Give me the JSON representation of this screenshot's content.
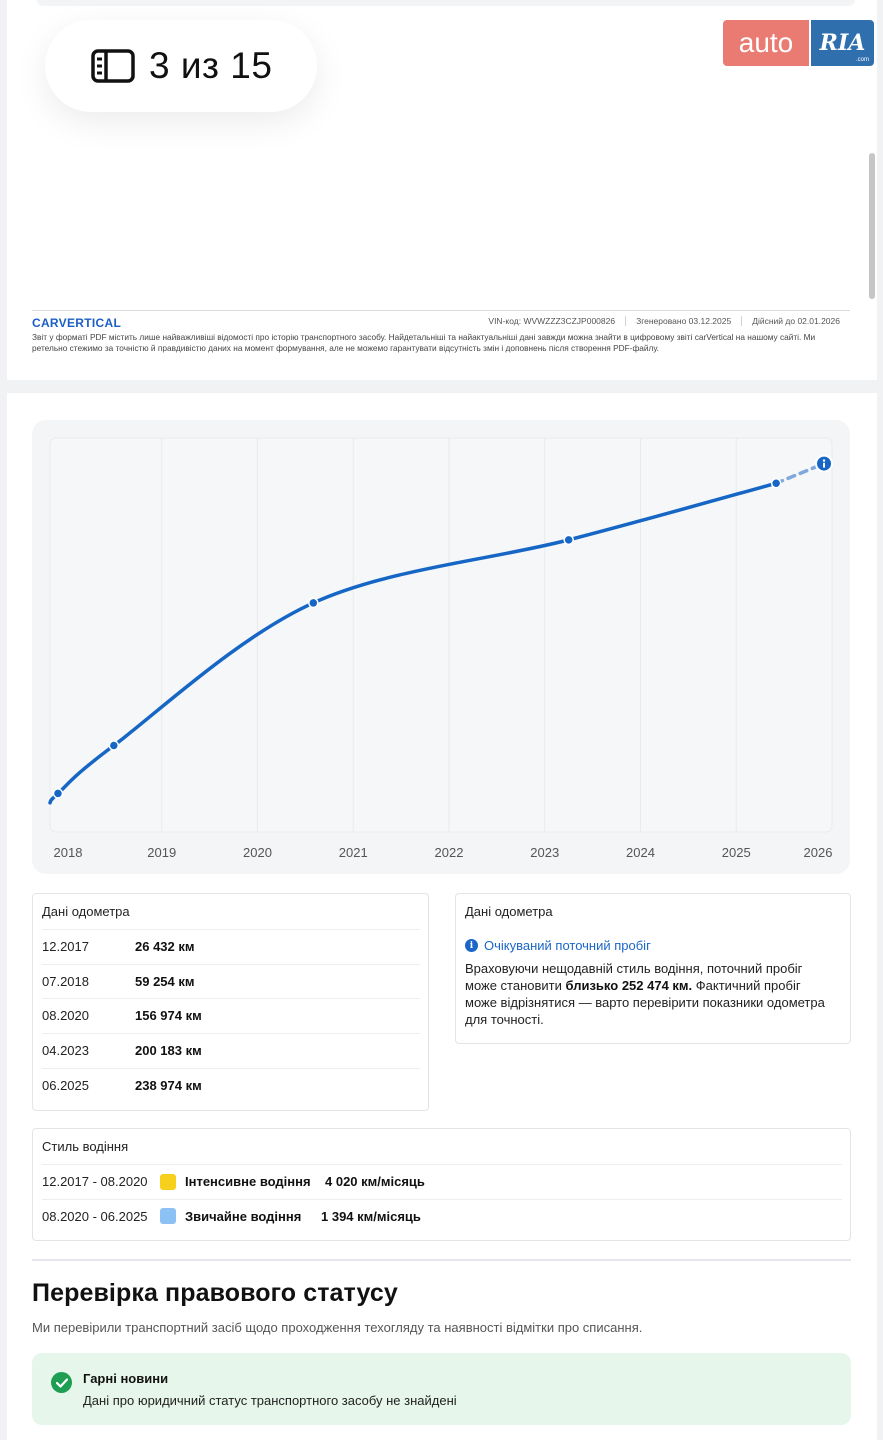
{
  "viewer": {
    "page_counter": "3 из 15",
    "logo_left": "auto",
    "logo_right": "RIA",
    "logo_right_small": ".com"
  },
  "pdf_footer": {
    "brand": "CARVERTICAL",
    "vin": "VIN-код:  WVWZZZ3CZJP000826",
    "generated": "Згенеровано  03.12.2025",
    "valid": "Дійсний до  02.01.2026",
    "note": "Звіт у форматі PDF містить лише найважливіші відомості про історію транспортного засобу. Найдетальніші та найактуальніші дані завжди можна знайти в цифровому звіті carVertical на нашому сайті. Ми ретельно стежимо за точністю й правдивістю даних на момент формування, але не можемо гарантувати відсутність змін і доповнень після створення PDF-файлу."
  },
  "chart_data": {
    "type": "line",
    "title": "",
    "xlabel": "",
    "ylabel": "",
    "x_ticks": [
      "2018",
      "2019",
      "2020",
      "2021",
      "2022",
      "2023",
      "2024",
      "2025",
      "2026"
    ],
    "xlim": [
      "2017-11",
      "2026-01"
    ],
    "ylim": [
      0,
      270000
    ],
    "grid": "vertical",
    "series": [
      {
        "points": [
          {
            "date": "2017-11",
            "km": 20000
          },
          {
            "date": "2017-12",
            "km": 26432
          },
          {
            "date": "2018-07",
            "km": 59254
          },
          {
            "date": "2020-08",
            "km": 156974
          },
          {
            "date": "2023-04",
            "km": 200183
          },
          {
            "date": "2025-06",
            "km": 238974
          }
        ],
        "color": "#1666c5"
      },
      {
        "points": [
          {
            "date": "2025-06",
            "km": 238974
          },
          {
            "date": "2025-12",
            "km": 252474
          }
        ],
        "color": "#7fa9dc",
        "style": "dashed"
      }
    ],
    "markers": [
      {
        "date": "2017-12",
        "km": 26432
      },
      {
        "date": "2018-07",
        "km": 59254
      },
      {
        "date": "2020-08",
        "km": 156974
      },
      {
        "date": "2023-04",
        "km": 200183
      },
      {
        "date": "2025-06",
        "km": 238974
      }
    ],
    "end_marker": {
      "date": "2025-12",
      "km": 252474,
      "icon": "info-icon"
    }
  },
  "odometer": {
    "title": "Дані одометра",
    "rows": [
      {
        "date": "12.2017",
        "value": "26 432 км"
      },
      {
        "date": "07.2018",
        "value": "59 254 км"
      },
      {
        "date": "08.2020",
        "value": "156 974 км"
      },
      {
        "date": "04.2023",
        "value": "200 183 км"
      },
      {
        "date": "06.2025",
        "value": "238 974 км"
      }
    ]
  },
  "expected": {
    "title": "Дані одометра",
    "heading": "Очікуваний поточний пробіг",
    "text_pre": "Враховуючи нещодавній стиль водіння, поточний пробіг може становити ",
    "text_bold": "близько 252 474 км.",
    "text_post": " Фактичний пробіг може відрізнятися — варто перевірити показники одометра для точності."
  },
  "driving_style": {
    "title": "Стиль водіння",
    "rows": [
      {
        "period": "12.2017 - 08.2020",
        "color": "#f7cf1d",
        "label": "Інтенсивне водіння",
        "rate": "4 020 км/місяць"
      },
      {
        "period": "08.2020 - 06.2025",
        "color": "#8cc1f3",
        "label": "Звичайне водіння",
        "rate": "1 394 км/місяць"
      }
    ]
  },
  "legal": {
    "title": "Перевірка правового статусу",
    "subtitle": "Ми перевірили транспортний засіб щодо проходження техогляду та наявності відмітки про списання.",
    "good_title": "Гарні новини",
    "good_text": "Дані про юридичний статус транспортного засобу не знайдені"
  }
}
